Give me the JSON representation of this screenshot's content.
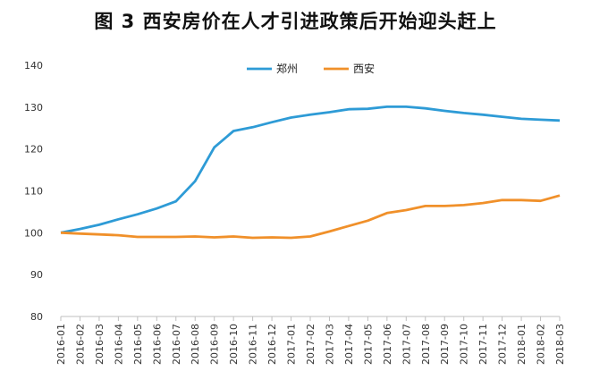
{
  "chart_data": {
    "type": "line",
    "title": "图 3 西安房价在人才引进政策后开始迎头赶上",
    "x": [
      "2016-01",
      "2016-02",
      "2016-03",
      "2016-04",
      "2016-05",
      "2016-06",
      "2016-07",
      "2016-08",
      "2016-09",
      "2016-10",
      "2016-11",
      "2016-12",
      "2017-01",
      "2017-02",
      "2017-03",
      "2017-04",
      "2017-05",
      "2017-06",
      "2017-07",
      "2017-08",
      "2017-09",
      "2017-10",
      "2017-11",
      "2017-12",
      "2018-01",
      "2018-02",
      "2018-03"
    ],
    "series": [
      {
        "name": "郑州",
        "color": "#2e9bd6",
        "values": [
          100,
          100.9,
          101.9,
          103.2,
          104.4,
          105.8,
          107.5,
          112.3,
          120.4,
          124.3,
          125.2,
          126.4,
          127.5,
          128.2,
          128.8,
          129.5,
          129.6,
          130.1,
          130.1,
          129.7,
          129.1,
          128.6,
          128.2,
          127.7,
          127.2,
          127.0,
          126.8
        ]
      },
      {
        "name": "西安",
        "color": "#f0902a",
        "values": [
          100,
          99.8,
          99.6,
          99.4,
          99.0,
          99.0,
          99.0,
          99.1,
          98.9,
          99.1,
          98.8,
          98.9,
          98.8,
          99.1,
          100.3,
          101.6,
          102.9,
          104.7,
          105.4,
          106.4,
          106.4,
          106.6,
          107.1,
          107.8,
          107.8,
          107.6,
          108.9
        ]
      }
    ],
    "ylim": [
      80,
      140
    ],
    "yticks": [
      80,
      90,
      100,
      110,
      120,
      130,
      140
    ],
    "grid": false,
    "legend": "top-center"
  }
}
